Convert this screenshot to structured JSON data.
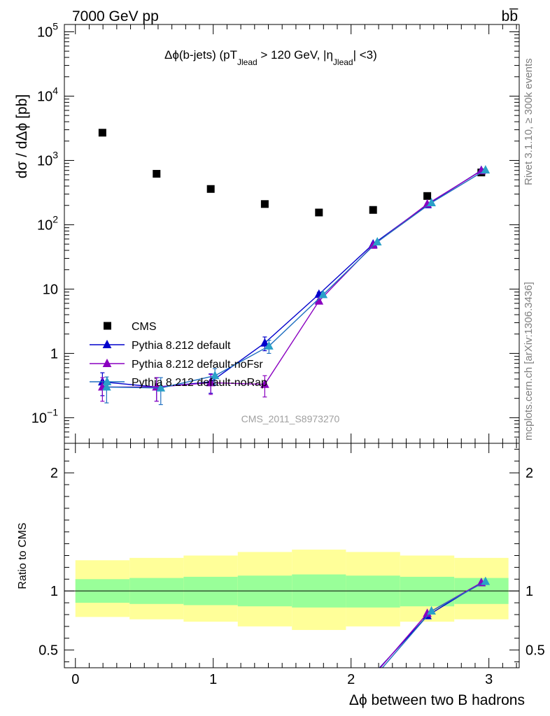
{
  "header": {
    "left": "7000 GeV pp",
    "right": "bb̅"
  },
  "side_labels": {
    "rivet": "Rivet 3.1.10, ≥ 300k events",
    "mcplots": "mcplots.cern.ch [arXiv:1306.3436]"
  },
  "watermark": "CMS_2011_S8973270",
  "colors": {
    "data": "#000000",
    "default": "#0000cc",
    "noFsr": "#8a00c0",
    "noRap": "#1f6fc0",
    "noRap_marker": "#2aa0c8",
    "band_inner": "#99ff99",
    "band_outer": "#ffff99"
  },
  "chart_data": [
    {
      "type": "scatter",
      "panel": "main",
      "title": "Δϕ(b-jets) (pT_Jlead > 120 GeV, |η_Jlead| <3)",
      "title_parts": [
        "Δϕ(b-jets) (pT",
        "Jlead",
        " >  120 GeV, |η",
        "Jlead",
        "| <3)"
      ],
      "ylabel": "dσ / dΔϕ [pb]",
      "yscale": "log",
      "ylim": [
        0.04,
        130000
      ],
      "xlim": [
        -0.08,
        3.22
      ],
      "y_tick_labels": [
        {
          "value": 100000,
          "base": "10",
          "exp": "5"
        },
        {
          "value": 10000,
          "base": "10",
          "exp": "4"
        },
        {
          "value": 1000,
          "base": "10",
          "exp": "3"
        },
        {
          "value": 100,
          "base": "10",
          "exp": "2"
        },
        {
          "value": 10,
          "base": "10",
          "exp": ""
        },
        {
          "value": 1,
          "base": "1",
          "exp": ""
        },
        {
          "value": 0.1,
          "base": "10",
          "exp": "−1"
        }
      ],
      "legend": {
        "placement": "bottom-left",
        "entries": [
          "CMS",
          "Pythia 8.212 default",
          "Pythia 8.212 default-noFsr",
          "Pythia 8.212 default-noRap"
        ]
      },
      "series": [
        {
          "name": "CMS",
          "marker": "square",
          "x": [
            0.196,
            0.589,
            0.982,
            1.374,
            1.767,
            2.16,
            2.553,
            2.945
          ],
          "y": [
            2700,
            620,
            360,
            210,
            155,
            170,
            280,
            650
          ]
        },
        {
          "name": "Pythia 8.212 default",
          "marker": "triangle",
          "x": [
            0.196,
            0.589,
            0.982,
            1.374,
            1.767,
            2.16,
            2.553,
            2.945
          ],
          "y": [
            0.36,
            0.3,
            0.36,
            1.45,
            8.3,
            50,
            205,
            700
          ],
          "yerr": [
            0.14,
            0.12,
            0.12,
            0.35,
            0.6,
            2,
            5,
            10
          ]
        },
        {
          "name": "Pythia 8.212 default-noFsr",
          "marker": "triangle",
          "x": [
            0.196,
            0.589,
            0.982,
            1.374,
            1.767,
            2.16,
            2.553,
            2.945
          ],
          "y": [
            0.3,
            0.3,
            0.35,
            0.33,
            6.5,
            48,
            210,
            690
          ],
          "yerr": [
            0.12,
            0.12,
            0.12,
            0.12,
            0.5,
            2,
            5,
            10
          ]
        },
        {
          "name": "Pythia 8.212 default-noRap",
          "marker": "triangle",
          "x": [
            0.196,
            0.589,
            0.982,
            1.374,
            1.767,
            2.16,
            2.553,
            2.945
          ],
          "y": [
            0.3,
            0.29,
            0.45,
            1.3,
            8.2,
            54,
            220,
            710
          ],
          "yerr": [
            0.13,
            0.13,
            0.13,
            0.3,
            0.6,
            2,
            5,
            10
          ]
        }
      ]
    },
    {
      "type": "line",
      "panel": "ratio",
      "xlabel": "Δϕ between two B hadrons",
      "ylabel": "Ratio to CMS",
      "ylim": [
        0.35,
        2.25
      ],
      "xlim": [
        -0.08,
        3.22
      ],
      "x_ticks": [
        0,
        1,
        2,
        3
      ],
      "y_ticks": [
        0.5,
        1,
        2
      ],
      "bands": {
        "edges": [
          0,
          0.393,
          0.785,
          1.178,
          1.571,
          1.963,
          2.356,
          2.749,
          3.142
        ],
        "inner_low": [
          0.9,
          0.89,
          0.88,
          0.87,
          0.86,
          0.86,
          0.87,
          0.89
        ],
        "inner_high": [
          1.1,
          1.11,
          1.12,
          1.13,
          1.14,
          1.13,
          1.12,
          1.11
        ],
        "outer_low": [
          0.78,
          0.76,
          0.74,
          0.7,
          0.67,
          0.7,
          0.74,
          0.76
        ],
        "outer_high": [
          1.26,
          1.28,
          1.3,
          1.33,
          1.35,
          1.33,
          1.3,
          1.28
        ]
      },
      "series": [
        {
          "name": "Pythia 8.212 default",
          "x": [
            2.16,
            2.553,
            2.945
          ],
          "y": [
            0.29,
            0.79,
            1.07
          ]
        },
        {
          "name": "Pythia 8.212 default-noFsr",
          "x": [
            2.16,
            2.553,
            2.945
          ],
          "y": [
            0.28,
            0.81,
            1.07
          ]
        },
        {
          "name": "Pythia 8.212 default-noRap",
          "x": [
            2.16,
            2.553,
            2.945
          ],
          "y": [
            0.3,
            0.83,
            1.08
          ]
        }
      ]
    }
  ]
}
